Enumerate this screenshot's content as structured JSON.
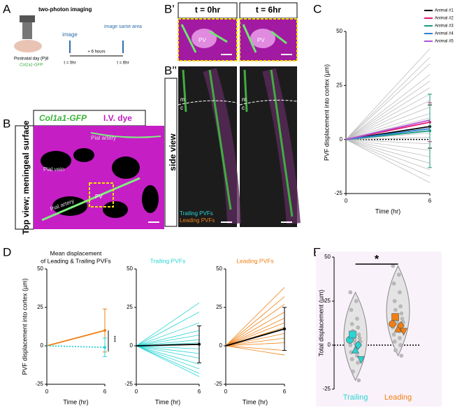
{
  "panels": {
    "A": {
      "label": "A",
      "title": "two-photon imaging",
      "age": "Postnatal day (P)8",
      "genotype": "Col1a1-GFP",
      "step1": "image",
      "interval": "+ 6 hours",
      "step2": "image same area",
      "t0": "t = 0hr",
      "t1": "t = 6hr"
    },
    "B": {
      "label": "B",
      "header_green": "Col1a1-GFP",
      "header_magenta": "I.V. dye",
      "side": "Top view; meningeal surface",
      "labels": [
        "Pial artery",
        "Pial vein",
        "Pial artery",
        "PV"
      ]
    },
    "B1": {
      "label": "B'",
      "t0": "t = 0hr",
      "t1": "t = 6hr",
      "pv": [
        "PV",
        "PV"
      ]
    },
    "B2": {
      "label": "B''",
      "side": "side view",
      "m": [
        "m",
        "m"
      ],
      "c": [
        "c",
        "c"
      ],
      "trailing": "Trailing PVFs",
      "leading": "Leading PVFs"
    },
    "C": {
      "label": "C"
    },
    "D": {
      "label": "D"
    },
    "E": {
      "label": "E"
    }
  },
  "chart_data": [
    {
      "type": "line",
      "x": [
        0,
        6
      ],
      "xlim": [
        0,
        6
      ],
      "xticks": [
        0,
        6
      ],
      "ylim": [
        -25,
        50
      ],
      "yticks": [
        -25,
        0,
        25,
        50
      ],
      "xlabel": "Time (hr)",
      "ylabel": "PVF displacement into cortex (µm)",
      "legend": "upper right",
      "zero_line": true,
      "series": [
        {
          "color": "#bdbdbd",
          "values": [
            0,
            42
          ]
        },
        {
          "color": "#bdbdbd",
          "values": [
            0,
            38
          ]
        },
        {
          "color": "#bdbdbd",
          "values": [
            0,
            35
          ]
        },
        {
          "color": "#bdbdbd",
          "values": [
            0,
            30
          ]
        },
        {
          "color": "#bdbdbd",
          "values": [
            0,
            27
          ]
        },
        {
          "color": "#bdbdbd",
          "values": [
            0,
            24
          ]
        },
        {
          "color": "#bdbdbd",
          "values": [
            0,
            21
          ]
        },
        {
          "color": "#bdbdbd",
          "values": [
            0,
            18
          ]
        },
        {
          "color": "#bdbdbd",
          "values": [
            0,
            15
          ]
        },
        {
          "color": "#bdbdbd",
          "values": [
            0,
            12
          ]
        },
        {
          "color": "#bdbdbd",
          "values": [
            0,
            10
          ]
        },
        {
          "color": "#bdbdbd",
          "values": [
            0,
            3
          ]
        },
        {
          "color": "#bdbdbd",
          "values": [
            0,
            1
          ]
        },
        {
          "color": "#bdbdbd",
          "values": [
            0,
            -2
          ]
        },
        {
          "color": "#bdbdbd",
          "values": [
            0,
            -5
          ]
        },
        {
          "color": "#bdbdbd",
          "values": [
            0,
            -8
          ]
        },
        {
          "color": "#bdbdbd",
          "values": [
            0,
            -11
          ]
        },
        {
          "color": "#bdbdbd",
          "values": [
            0,
            -14
          ]
        },
        {
          "color": "#bdbdbd",
          "values": [
            0,
            -17
          ]
        },
        {
          "color": "#bdbdbd",
          "values": [
            0,
            -20
          ]
        },
        {
          "name": "Animal #1",
          "color": "#000000",
          "values": [
            0,
            6
          ],
          "errors": [
            null,
            10
          ]
        },
        {
          "name": "Animal #2",
          "color": "#e0186c",
          "values": [
            0,
            8
          ],
          "errors": [
            null,
            9
          ]
        },
        {
          "name": "Animal #3",
          "color": "#1a9a7e",
          "values": [
            0,
            4
          ],
          "errors": [
            null,
            17
          ]
        },
        {
          "name": "Animal #4",
          "color": "#2f7fd0",
          "values": [
            0,
            5
          ]
        },
        {
          "name": "Animal #5",
          "color": "#b84fd6",
          "values": [
            0,
            9
          ]
        }
      ]
    },
    {
      "type": "line",
      "title": [
        "Mean displacement",
        "of Leading & Trailing PVFs"
      ],
      "x": [
        0,
        6
      ],
      "xlim": [
        0,
        6
      ],
      "xticks": [
        0,
        6
      ],
      "ylim": [
        -25,
        50
      ],
      "yticks": [
        -25,
        0,
        25,
        50
      ],
      "xlabel": "Time (hr)",
      "ylabel": "PVF displacement into cortex (µm)",
      "annotation": "***",
      "series": [
        {
          "color": "#f07f12",
          "values": [
            0,
            10
          ],
          "errors": [
            null,
            14
          ]
        },
        {
          "color": "#2ad4d4",
          "style": "dotted",
          "values": [
            0,
            -1
          ],
          "errors": [
            null,
            6
          ]
        }
      ]
    },
    {
      "type": "line",
      "title": [
        "Trailing PVFs"
      ],
      "title_color": "#2ad4d4",
      "x": [
        0,
        6
      ],
      "xlim": [
        0,
        6
      ],
      "xticks": [
        0,
        6
      ],
      "ylim": [
        -25,
        50
      ],
      "yticks": [
        -25,
        0,
        25,
        50
      ],
      "xlabel": "Time (hr)",
      "series": [
        {
          "color": "#2ad4d4",
          "values": [
            0,
            28
          ]
        },
        {
          "color": "#2ad4d4",
          "values": [
            0,
            22
          ]
        },
        {
          "color": "#2ad4d4",
          "values": [
            0,
            15
          ]
        },
        {
          "color": "#2ad4d4",
          "values": [
            0,
            10
          ]
        },
        {
          "color": "#2ad4d4",
          "values": [
            0,
            7
          ]
        },
        {
          "color": "#2ad4d4",
          "values": [
            0,
            4
          ]
        },
        {
          "color": "#2ad4d4",
          "values": [
            0,
            2
          ]
        },
        {
          "color": "#2ad4d4",
          "values": [
            0,
            -2
          ]
        },
        {
          "color": "#2ad4d4",
          "values": [
            0,
            -5
          ]
        },
        {
          "color": "#2ad4d4",
          "values": [
            0,
            -8
          ]
        },
        {
          "color": "#2ad4d4",
          "values": [
            0,
            -12
          ]
        },
        {
          "color": "#2ad4d4",
          "values": [
            0,
            -15
          ]
        },
        {
          "color": "#2ad4d4",
          "values": [
            0,
            -18
          ]
        },
        {
          "color": "#2ad4d4",
          "values": [
            0,
            -20
          ]
        },
        {
          "color": "#000000",
          "values": [
            0,
            1
          ],
          "errors": [
            null,
            12
          ]
        }
      ]
    },
    {
      "type": "line",
      "title": [
        "Leading PVFs"
      ],
      "title_color": "#f07f12",
      "x": [
        0,
        6
      ],
      "xlim": [
        0,
        6
      ],
      "xticks": [
        0,
        6
      ],
      "ylim": [
        -25,
        50
      ],
      "yticks": [
        -25,
        0,
        25,
        50
      ],
      "xlabel": "Time (hr)",
      "series": [
        {
          "color": "#f07f12",
          "values": [
            0,
            38
          ]
        },
        {
          "color": "#f07f12",
          "values": [
            0,
            32
          ]
        },
        {
          "color": "#f07f12",
          "values": [
            0,
            27
          ]
        },
        {
          "color": "#f07f12",
          "values": [
            0,
            22
          ]
        },
        {
          "color": "#f07f12",
          "values": [
            0,
            18
          ]
        },
        {
          "color": "#f07f12",
          "values": [
            0,
            15
          ]
        },
        {
          "color": "#f07f12",
          "values": [
            0,
            12
          ]
        },
        {
          "color": "#f07f12",
          "values": [
            0,
            8
          ]
        },
        {
          "color": "#f07f12",
          "values": [
            0,
            5
          ]
        },
        {
          "color": "#f07f12",
          "values": [
            0,
            2
          ]
        },
        {
          "color": "#f07f12",
          "values": [
            0,
            -3
          ]
        },
        {
          "color": "#f07f12",
          "values": [
            0,
            -6
          ]
        },
        {
          "color": "#000000",
          "values": [
            0,
            11
          ],
          "errors": [
            null,
            14
          ]
        }
      ]
    },
    {
      "type": "strip",
      "categories": [
        "Trailing",
        "Leading"
      ],
      "colors": [
        "#2ad4d4",
        "#f07f12"
      ],
      "ylim": [
        -25,
        50
      ],
      "yticks": [
        -25,
        0,
        25,
        50
      ],
      "ylabel": "Total displacement (µm)",
      "annotation": "*",
      "zero_line": true,
      "points": [
        [
          30,
          25,
          20,
          15,
          12,
          10,
          8,
          6,
          5,
          4,
          3,
          2,
          1,
          0,
          -2,
          -4,
          -6,
          -8,
          -10,
          -15,
          -20
        ],
        [
          45,
          40,
          35,
          30,
          25,
          22,
          20,
          18,
          16,
          15,
          14,
          13,
          12,
          10,
          8,
          6,
          4,
          2,
          0,
          -3,
          -6
        ]
      ],
      "means": [
        [
          3,
          6,
          -3,
          0,
          -8
        ],
        [
          12,
          16,
          9,
          11,
          8
        ]
      ]
    }
  ]
}
